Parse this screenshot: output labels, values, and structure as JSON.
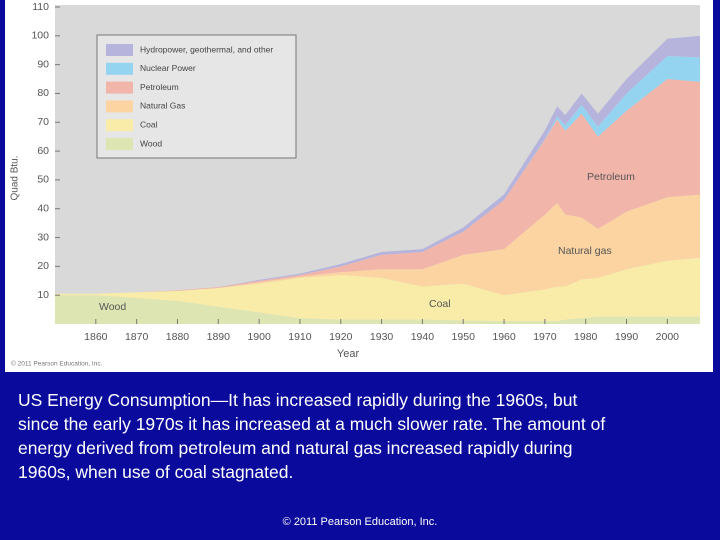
{
  "chart_data": {
    "type": "stacked-area",
    "x": [
      1850,
      1860,
      1870,
      1880,
      1890,
      1900,
      1910,
      1920,
      1930,
      1940,
      1950,
      1960,
      1970,
      1973,
      1975,
      1979,
      1983,
      1990,
      2000,
      2008
    ],
    "series": [
      {
        "name": "Wood",
        "color": "#dde6b2",
        "values": [
          10,
          10,
          9,
          8,
          6,
          4,
          2,
          1.5,
          1.5,
          1.5,
          1.2,
          1,
          1,
          1,
          1.5,
          2,
          2.5,
          2.5,
          2.5,
          2.5
        ]
      },
      {
        "name": "Coal",
        "color": "#f8eca8",
        "values": [
          0.5,
          0.5,
          2,
          3.5,
          6.5,
          10,
          14,
          15.5,
          14.5,
          11.5,
          12.8,
          9,
          11,
          12,
          11.5,
          13.5,
          13.5,
          16.5,
          19.5,
          20.5
        ]
      },
      {
        "name": "Natural Gas",
        "color": "#fbd4a2",
        "values": [
          0,
          0,
          0,
          0,
          0,
          0.5,
          0.5,
          1,
          3,
          6,
          10,
          16,
          26,
          29,
          25,
          21.5,
          17,
          20,
          22,
          22
        ]
      },
      {
        "name": "Petroleum",
        "color": "#f2b5aa",
        "values": [
          0,
          0,
          0,
          0.2,
          0.3,
          0.5,
          0.5,
          2,
          5,
          6,
          8,
          17,
          26,
          29,
          29,
          36,
          32,
          35,
          41,
          39
        ]
      },
      {
        "name": "Nuclear Power",
        "color": "#95d4f0",
        "values": [
          0,
          0,
          0,
          0,
          0,
          0,
          0,
          0,
          0,
          0,
          0,
          0,
          0.2,
          1,
          2,
          3,
          3.5,
          6,
          8,
          8.5
        ]
      },
      {
        "name": "Hydropower, geothermal, and other",
        "color": "#b6b4dc",
        "values": [
          0,
          0,
          0,
          0,
          0,
          0.3,
          0.5,
          0.8,
          1,
          1,
          1.5,
          2,
          3,
          3.5,
          3.5,
          4,
          4.5,
          5,
          6,
          7.5
        ]
      }
    ],
    "xlim": [
      1850,
      2008
    ],
    "xticks": [
      1860,
      1870,
      1880,
      1890,
      1900,
      1910,
      1920,
      1930,
      1940,
      1950,
      1960,
      1970,
      1980,
      1990,
      2000
    ],
    "ylim": [
      0,
      110
    ],
    "yticks": [
      10,
      20,
      30,
      40,
      50,
      60,
      70,
      80,
      90,
      100,
      110
    ],
    "x_label": "Year",
    "y_label": "Quad Btu.",
    "annotations": [
      "Petroleum",
      "Natural gas",
      "Coal",
      "Wood"
    ],
    "credit": "© 2011 Pearson Education, Inc."
  },
  "caption": [
    "US Energy Consumption—It has increased rapidly during the 1960s, but",
    "since the early 1970s it has increased at a much slower rate. The amount of",
    "energy derived from petroleum and natural gas increased rapidly during",
    "1960s, when use of coal stagnated."
  ],
  "footer": "© 2011 Pearson Education, Inc."
}
